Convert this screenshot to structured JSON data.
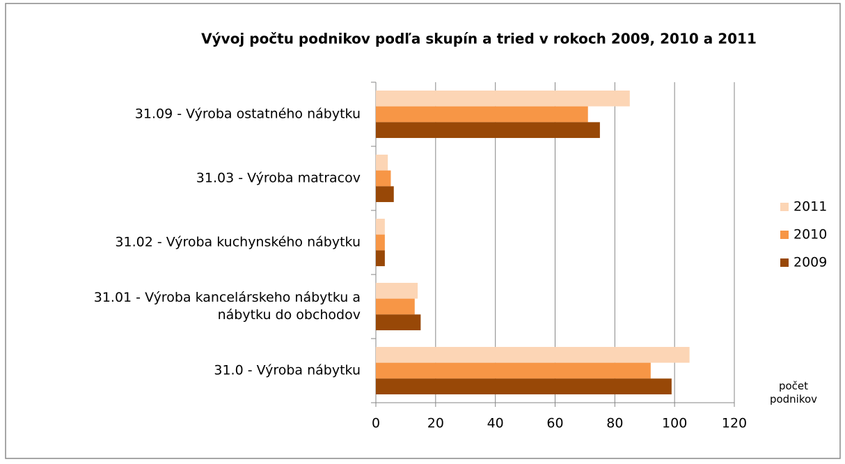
{
  "chart_data": {
    "type": "hbar",
    "title": "Vývoj počtu podnikov podľa skupín a tried v rokoch 2009, 2010 a 2011",
    "x_label": "počet podnikov",
    "categories": [
      "31.09 - Výroba ostatného nábytku",
      "31.03 - Výroba matracov",
      "31.02 - Výroba kuchynského nábytku",
      "31.01 - Výroba kancelárskeho nábytku a nábytku do obchodov",
      "31.0 - Výroba nábytku"
    ],
    "series": [
      {
        "name": "2011",
        "color": "#fcd5b5",
        "values": [
          85,
          4,
          3,
          14,
          105
        ]
      },
      {
        "name": "2010",
        "color": "#f79646",
        "values": [
          71,
          5,
          3,
          13,
          92
        ]
      },
      {
        "name": "2009",
        "color": "#984807",
        "values": [
          75,
          6,
          3,
          15,
          99
        ]
      }
    ],
    "xlim": [
      0,
      120
    ],
    "xticks": [
      0,
      20,
      40,
      60,
      80,
      100,
      120
    ],
    "grid": true,
    "legend": "right"
  }
}
